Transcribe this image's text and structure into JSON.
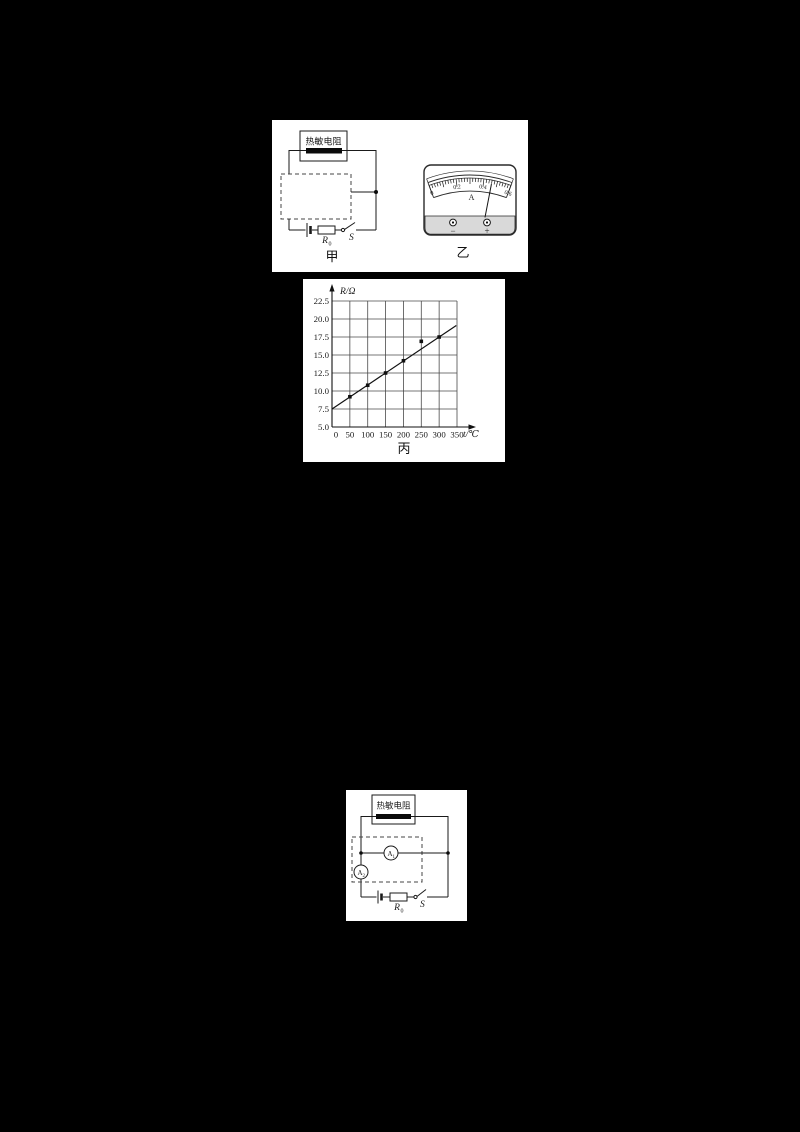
{
  "colors": {
    "page_bg": "#000000",
    "figure_bg": "#ffffff",
    "ink": "#1a1a1a",
    "meter_strip": "#d9d9d9"
  },
  "figure_top": {
    "circuit_jia": {
      "thermistor_label": "热敏电阻",
      "resistor": {
        "base": "R",
        "sub": "0"
      },
      "switch_label": "S",
      "caption": "甲"
    },
    "ammeter_yi": {
      "scale_labels": [
        "0",
        "0.2",
        "0.4",
        "0.6"
      ],
      "scale_min": 0,
      "scale_max": 0.6,
      "unit_label": "A",
      "needle_value": 0.46,
      "terminals": {
        "negative": "−",
        "positive": "+"
      },
      "caption": "乙"
    }
  },
  "chart_data": {
    "type": "line",
    "caption": "丙",
    "xlabel": "t/℃",
    "ylabel": "R/Ω",
    "xlim": [
      0,
      350
    ],
    "ylim": [
      5.0,
      22.5
    ],
    "xticks": [
      0,
      50,
      100,
      150,
      200,
      250,
      300,
      350
    ],
    "xtick_labels": [
      "0",
      "50",
      "100",
      "150",
      "200",
      "250",
      "300",
      "350"
    ],
    "yticks": [
      5.0,
      7.5,
      10.0,
      12.5,
      15.0,
      17.5,
      20.0,
      22.5
    ],
    "ytick_labels": [
      "5.0",
      "7.5",
      "10.0",
      "12.5",
      "15.0",
      "17.5",
      "20.0",
      "22.5"
    ],
    "grid": true,
    "legend": false,
    "series": [
      {
        "name": "fit-line",
        "type": "line",
        "x": [
          0,
          348
        ],
        "y": [
          7.5,
          19.1
        ]
      },
      {
        "name": "data-points",
        "type": "scatter",
        "x": [
          50,
          100,
          150,
          200,
          250,
          300
        ],
        "y": [
          9.2,
          10.8,
          12.5,
          14.2,
          16.9,
          17.5
        ]
      }
    ]
  },
  "figure_bottom": {
    "circuit": {
      "thermistor_label": "热敏电阻",
      "ammeter_1": {
        "base": "A",
        "sub": "1"
      },
      "ammeter_2": {
        "base": "A",
        "sub": "2"
      },
      "resistor": {
        "base": "R",
        "sub": "0"
      },
      "switch_label": "S"
    }
  }
}
